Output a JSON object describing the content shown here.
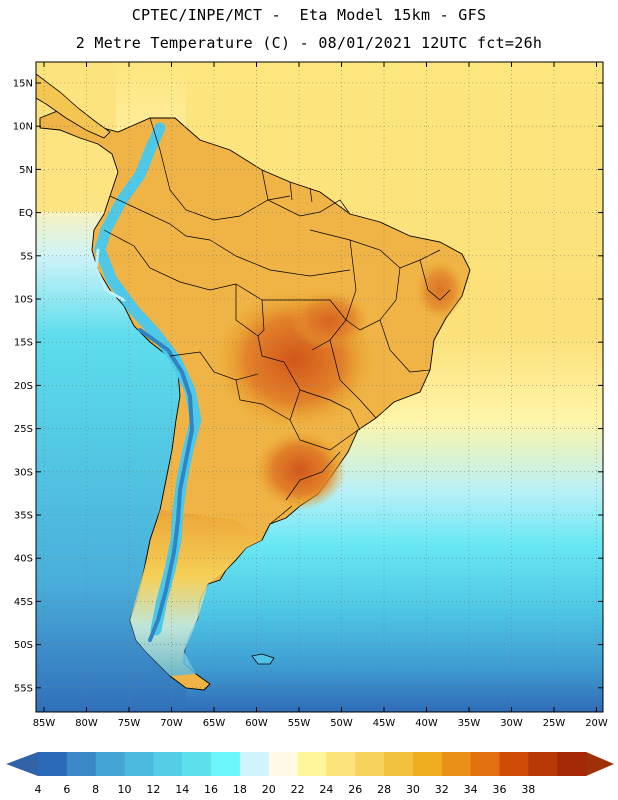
{
  "title_line1": "CPTEC/INPE/MCT -  Eta Model 15km - GFS",
  "title_line2": "2 Metre Temperature (C) - 08/01/2021 12UTC fct=26h",
  "lat_labels": [
    "15N",
    "10N",
    "5N",
    "EQ",
    "5S",
    "10S",
    "15S",
    "20S",
    "25S",
    "30S",
    "35S",
    "40S",
    "45S",
    "50S",
    "55S"
  ],
  "lon_labels": [
    "85W",
    "80W",
    "75W",
    "70W",
    "65W",
    "60W",
    "55W",
    "50W",
    "45W",
    "40W",
    "35W",
    "30W",
    "25W",
    "20W"
  ],
  "colorbar": {
    "labels": [
      "4",
      "6",
      "8",
      "10",
      "12",
      "14",
      "16",
      "18",
      "20",
      "22",
      "24",
      "26",
      "28",
      "30",
      "32",
      "34",
      "36",
      "38"
    ],
    "colors": [
      "#2a6ab8",
      "#3a88c6",
      "#44a4d4",
      "#4cbadf",
      "#56cde6",
      "#5ee0ec",
      "#6af6fa",
      "#cff4fa",
      "#fffae6",
      "#fff59a",
      "#fde47a",
      "#f7d25c",
      "#f2c13e",
      "#efad20",
      "#ea9018",
      "#e2700e",
      "#cf4c08",
      "#b83808",
      "#a42a06"
    ],
    "low_color": "#3262a8",
    "high_color": "#a0300a"
  },
  "palette": {
    "ocean_cold": "#3d7fc4",
    "ocean_cool": "#4fc3e6",
    "ocean_mid": "#66e8f4",
    "ocean_warm": "#fde27a",
    "ocean_hot": "#f7d45a",
    "land_hot": "#eaa52a",
    "land_very_hot": "#d8661a",
    "andes_cold": "#4fc8e8"
  }
}
